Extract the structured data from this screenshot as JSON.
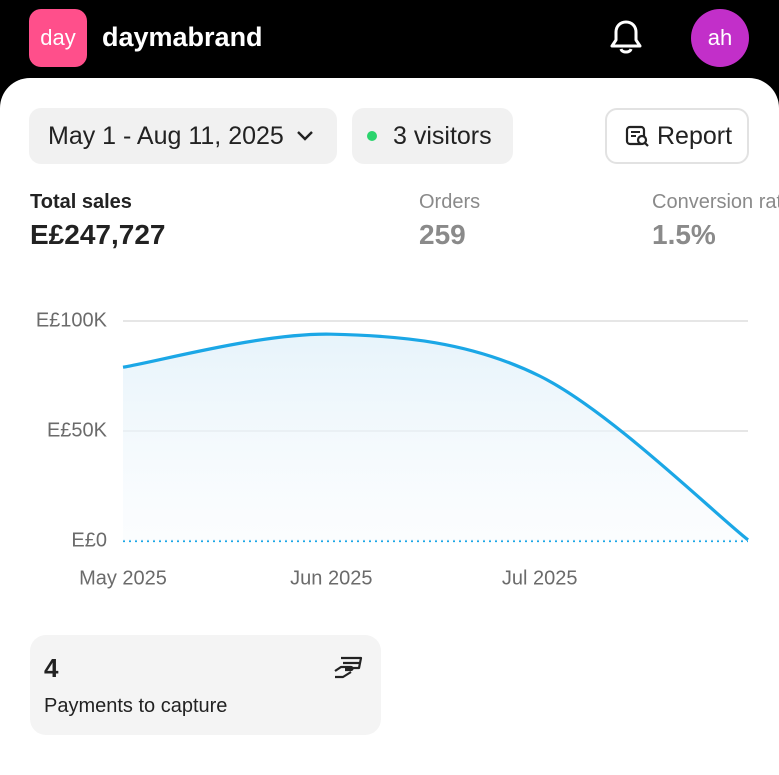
{
  "header": {
    "logo": "day",
    "store": "daymabrand",
    "avatar": "ah"
  },
  "filters": {
    "date_range": "May 1 - Aug 11, 2025",
    "visitors": "3 visitors",
    "report": "Report"
  },
  "metrics": [
    {
      "label": "Total sales",
      "value": "E£247,727"
    },
    {
      "label": "Orders",
      "value": "259"
    },
    {
      "label": "Conversion rate",
      "value": "1.5%"
    }
  ],
  "chart": {
    "type": "line",
    "categories": [
      "May 2025",
      "Jun 2025",
      "Jul 2025",
      null
    ],
    "series": [
      {
        "color": "#1ba7e6",
        "values": [
          79000,
          94000,
          75000,
          500
        ]
      }
    ],
    "ylim": [
      0,
      100000
    ],
    "yticks": [
      {
        "value": 0,
        "label": "E£0"
      },
      {
        "value": 50000,
        "label": "E£50K"
      },
      {
        "value": 100000,
        "label": "E£100K"
      }
    ],
    "grid": true
  },
  "card": {
    "count": "4",
    "label": "Payments to capture"
  }
}
